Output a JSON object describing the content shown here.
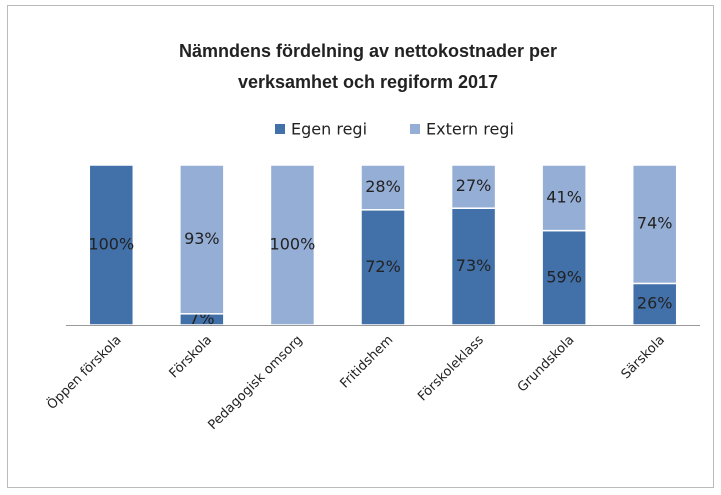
{
  "chart_data": {
    "type": "stacked_bar",
    "title": [
      "Nämndens fördelning av nettokostnader per",
      "verksamhet och regiform 2017"
    ],
    "categories": [
      "Öppen förskola",
      "Förskola",
      "Pedagogisk omsorg",
      "Fritidshem",
      "Förskoleklass",
      "Grundskola",
      "Särskola"
    ],
    "series": [
      {
        "name": "Egen regi",
        "color": "#4270a9",
        "values": [
          100,
          7,
          0,
          72,
          73,
          59,
          26
        ],
        "value_labels": [
          "100%",
          "7%",
          null,
          "72%",
          "73%",
          "59%",
          "26%"
        ]
      },
      {
        "name": "Extern regi",
        "color": "#95aed6",
        "values": [
          0,
          93,
          100,
          28,
          27,
          41,
          74
        ],
        "value_labels": [
          null,
          "93%",
          "100%",
          "28%",
          "27%",
          "41%",
          "74%"
        ]
      }
    ],
    "legend": "top"
  }
}
